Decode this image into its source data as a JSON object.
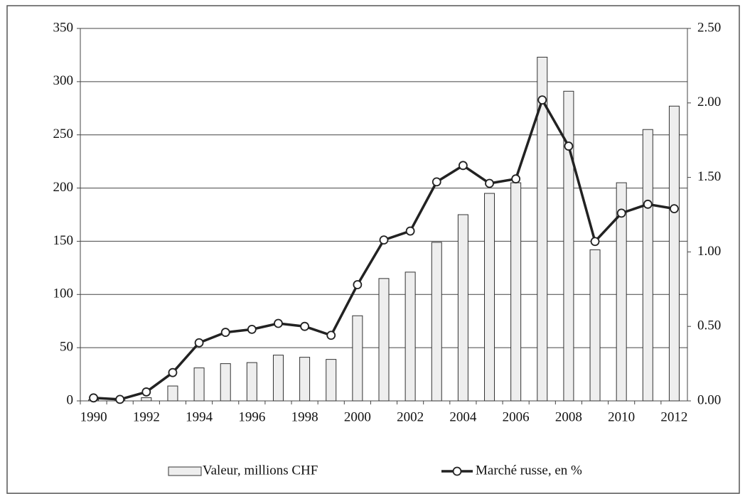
{
  "chart_data": {
    "type": "bar-line",
    "categories": [
      "1990",
      null,
      "1992",
      null,
      "1994",
      null,
      "1996",
      null,
      "1998",
      null,
      "2000",
      null,
      "2002",
      null,
      "2004",
      null,
      "2006",
      null,
      "2008",
      null,
      "2010",
      null,
      "2012"
    ],
    "series": [
      {
        "name": "Valeur, millions CHF",
        "type": "bar",
        "color": "#eeeeee",
        "axis": "y",
        "values": [
          1,
          1,
          3,
          14,
          31,
          35,
          36,
          43,
          41,
          39,
          80,
          115,
          121,
          149,
          175,
          195,
          205,
          323,
          291,
          142,
          205,
          255,
          277
        ]
      },
      {
        "name": "Marché russe, en %",
        "type": "line",
        "color": "#222222",
        "axis": "y2",
        "values": [
          0.02,
          0.01,
          0.06,
          0.19,
          0.39,
          0.46,
          0.48,
          0.52,
          0.5,
          0.44,
          0.78,
          1.08,
          1.14,
          1.47,
          1.58,
          1.46,
          1.49,
          2.02,
          1.71,
          1.07,
          1.26,
          1.32,
          1.29
        ]
      }
    ],
    "ylim": [
      0,
      350
    ],
    "yticks": [
      0,
      50,
      100,
      150,
      200,
      250,
      300,
      350
    ],
    "y2lim": [
      0,
      2.5
    ],
    "y2ticks": [
      {
        "value": 0,
        "label": "0.00"
      },
      {
        "value": 0.5,
        "label": "0.50"
      },
      {
        "value": 1,
        "label": "1.00"
      },
      {
        "value": 1.5,
        "label": "1.50"
      },
      {
        "value": 2,
        "label": "2.00"
      },
      {
        "value": 2.5,
        "label": "2.50"
      }
    ],
    "grid": true,
    "legend": "bottom"
  }
}
